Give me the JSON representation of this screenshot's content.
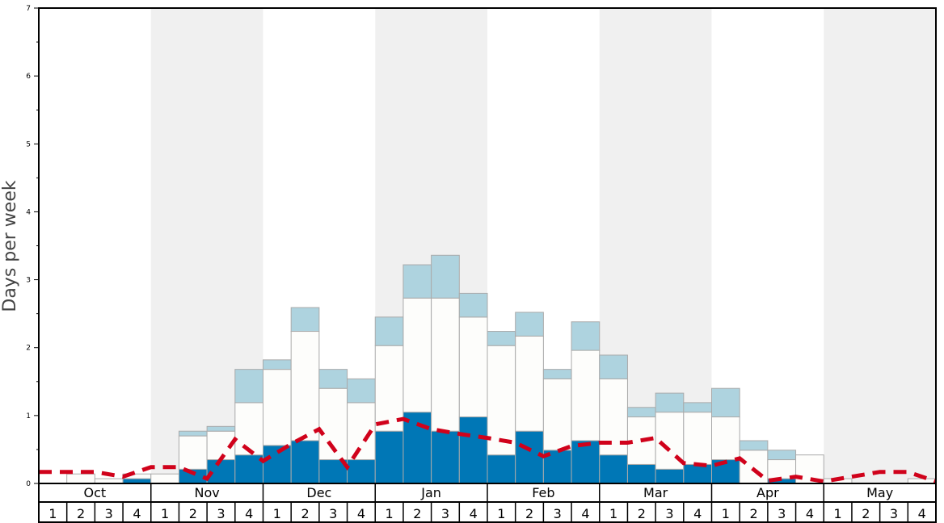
{
  "chart_data": {
    "type": "bar",
    "stacked": true,
    "ylabel": "Days per week",
    "ylim": [
      0,
      7
    ],
    "yticks": [
      "0",
      "1",
      "2",
      "3",
      "4",
      "5",
      "6",
      "7"
    ],
    "months": [
      "Oct",
      "Nov",
      "Dec",
      "Jan",
      "Feb",
      "Mar",
      "Apr",
      "May"
    ],
    "week_labels": [
      "1",
      "2",
      "3",
      "4"
    ],
    "shaded_months": [
      "Nov",
      "Jan",
      "Mar",
      "May"
    ],
    "colors": {
      "dark": "#0077b6",
      "mid": "#fdfdfb",
      "light": "#aed3df",
      "line": "#d0021b",
      "shade": "#f0f0f0",
      "edge": "#aaaaaa"
    },
    "series": [
      {
        "name": "dark",
        "values": [
          0,
          0,
          0,
          0.07,
          0,
          0.21,
          0.35,
          0.42,
          0.56,
          0.63,
          0.35,
          0.35,
          0.77,
          1.05,
          0.77,
          0.98,
          0.42,
          0.77,
          0.49,
          0.63,
          0.42,
          0.28,
          0.21,
          0.28,
          0.35,
          0,
          0.07,
          0,
          0,
          0,
          0,
          0
        ]
      },
      {
        "name": "white",
        "values": [
          0,
          0.14,
          0.07,
          0.07,
          0.14,
          0.49,
          0.42,
          0.77,
          1.12,
          1.61,
          1.05,
          0.84,
          1.26,
          1.68,
          1.96,
          1.47,
          1.61,
          1.4,
          1.05,
          1.33,
          1.12,
          0.7,
          0.84,
          0.77,
          0.63,
          0.49,
          0.28,
          0.42,
          0.07,
          0,
          0,
          0.07
        ]
      },
      {
        "name": "light",
        "values": [
          0,
          0,
          0,
          0,
          0,
          0.07,
          0.07,
          0.49,
          0.14,
          0.35,
          0.28,
          0.35,
          0.42,
          0.49,
          0.63,
          0.35,
          0.21,
          0.35,
          0.14,
          0.42,
          0.35,
          0.14,
          0.28,
          0.14,
          0.42,
          0.14,
          0.14,
          0,
          0,
          0,
          0,
          0
        ]
      }
    ],
    "line": {
      "name": "average",
      "values": [
        0.17,
        0.17,
        0.17,
        0.1,
        0.24,
        0.24,
        0.07,
        0.65,
        0.33,
        0.58,
        0.8,
        0.24,
        0.87,
        0.95,
        0.8,
        0.73,
        0.67,
        0.6,
        0.4,
        0.55,
        0.6,
        0.6,
        0.67,
        0.3,
        0.26,
        0.37,
        0.04,
        0.1,
        0.03,
        0.1,
        0.17,
        0.17,
        0.03
      ]
    }
  }
}
